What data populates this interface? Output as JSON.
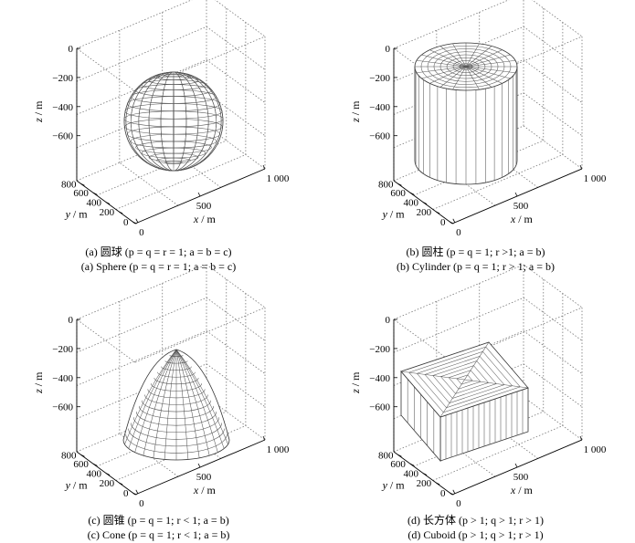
{
  "panels": [
    {
      "shape": "sphere",
      "caption_cn": "(a) 圆球 (p = q = r = 1; a = b = c)",
      "caption_en": "(a) Sphere (p = q = r = 1; a = b = c)"
    },
    {
      "shape": "cylinder",
      "caption_cn": "(b) 圆柱 (p = q = 1; r >1; a = b)",
      "caption_en": "(b) Cylinder (p = q =  1; r > 1; a = b)"
    },
    {
      "shape": "cone",
      "caption_cn": "(c) 圆锥 (p = q = 1; r < 1; a = b)",
      "caption_en": "(c) Cone (p = q = 1; r < 1; a = b)"
    },
    {
      "shape": "cuboid",
      "caption_cn": "(d) 长方体 (p > 1; q > 1; r > 1)",
      "caption_en": "(d) Cuboid (p > 1; q > 1; r > 1)"
    }
  ],
  "axes": {
    "z_label": "z",
    "z_unit": "/ m",
    "y_label": "y",
    "y_unit": "/ m",
    "x_label": "x",
    "x_unit": "/ m",
    "z_ticks": [
      "0",
      "−200",
      "−400",
      "−600"
    ],
    "y_ticks": [
      "800",
      "600",
      "400",
      "200",
      "0"
    ],
    "x_ticks": [
      "0",
      "500",
      "1 000"
    ]
  },
  "colors": {
    "mesh": "#555555",
    "axis": "#000000",
    "grid": "#777777"
  }
}
